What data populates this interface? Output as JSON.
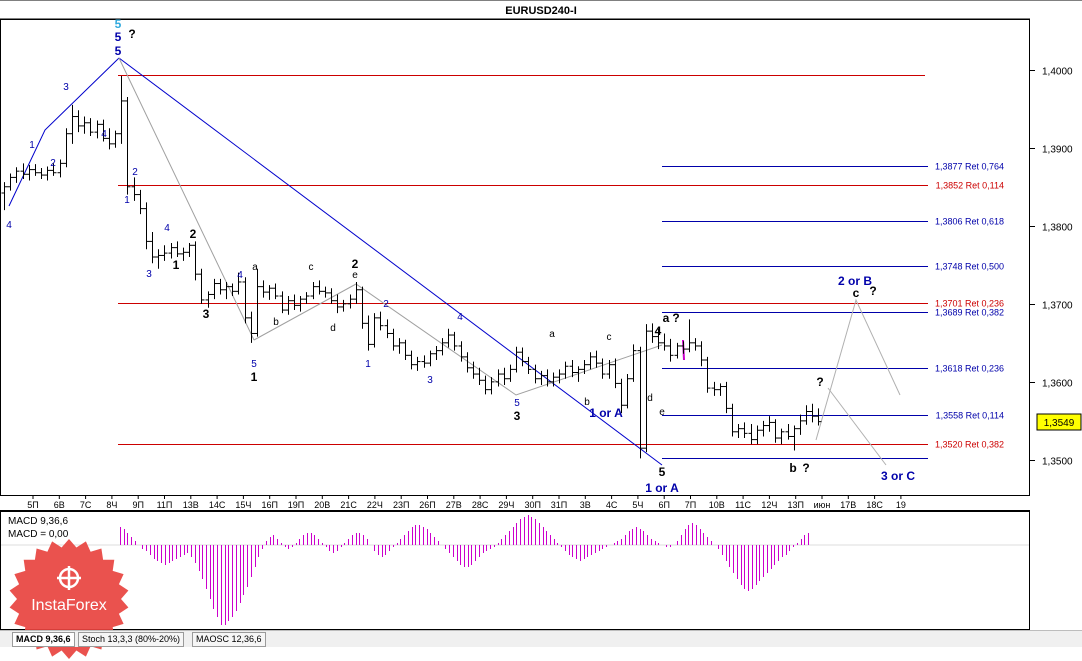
{
  "chart_data": {
    "type": "candlestick",
    "title": "EURUSD240-I",
    "last_price": "1,3549",
    "y_axis": {
      "range": [
        1.3455,
        1.4065
      ],
      "ticks": [
        "1,4000",
        "1,3900",
        "1,3800",
        "1,3700",
        "1,3600",
        "1,3500"
      ]
    },
    "x_ticks": [
      "5П",
      "6В",
      "7С",
      "8Ч",
      "9П",
      "11П",
      "13В",
      "14С",
      "15Ч",
      "16П",
      "19П",
      "20В",
      "21С",
      "22Ч",
      "23П",
      "26П",
      "27В",
      "28С",
      "29Ч",
      "30П",
      "31П",
      "3В",
      "4С",
      "5Ч",
      "6П",
      "7П",
      "10В",
      "11С",
      "12Ч",
      "13П",
      "июн",
      "17В",
      "18С",
      "19"
    ],
    "horizontal_levels": [
      {
        "label": "",
        "value": 1.3993,
        "color": "#cc0000"
      },
      {
        "label": "1,3877 Ret 0,764",
        "value": 1.3877,
        "color": "#0000aa"
      },
      {
        "label": "1,3852 Ret 0,114",
        "value": 1.3852,
        "color": "#cc0000"
      },
      {
        "label": "1,3806 Ret 0,618",
        "value": 1.3806,
        "color": "#0000aa"
      },
      {
        "label": "1,3748 Ret 0,500",
        "value": 1.3748,
        "color": "#0000aa"
      },
      {
        "label": "1,3701 Ret 0,236",
        "value": 1.3701,
        "color": "#cc0000"
      },
      {
        "label": "1,3689 Ret 0,382",
        "value": 1.3689,
        "color": "#0000aa"
      },
      {
        "label": "1,3618 Ret 0,236",
        "value": 1.3618,
        "color": "#0000aa"
      },
      {
        "label": "1,3558 Ret 0,114",
        "value": 1.3558,
        "color": "#0000aa"
      },
      {
        "label": "1,3520 Ret 0,382",
        "value": 1.352,
        "color": "#cc0000"
      },
      {
        "label": "",
        "value": 1.3502,
        "color": "#0000aa"
      }
    ],
    "wave_labels": [
      {
        "text": "5",
        "color": "#33aadd"
      },
      {
        "text": "5",
        "color": "#0000aa"
      },
      {
        "text": "5",
        "color": "#0000aa"
      },
      {
        "text": "?",
        "color": "#000000"
      },
      {
        "text": "3",
        "color": "#0000aa"
      },
      {
        "text": "1",
        "color": "#0000aa"
      },
      {
        "text": "2",
        "color": "#0000aa"
      },
      {
        "text": "4",
        "color": "#0000aa"
      },
      {
        "text": "4",
        "color": "#0000aa"
      },
      {
        "text": "2",
        "color": "#0000aa"
      },
      {
        "text": "1",
        "color": "#0000aa"
      },
      {
        "text": "3",
        "color": "#0000aa"
      },
      {
        "text": "4",
        "color": "#0000aa"
      },
      {
        "text": "1",
        "color": "#000000"
      },
      {
        "text": "2",
        "color": "#000000"
      },
      {
        "text": "3",
        "color": "#000000"
      },
      {
        "text": "4",
        "color": "#0000aa"
      },
      {
        "text": "a",
        "color": "#000000"
      },
      {
        "text": "b",
        "color": "#000000"
      },
      {
        "text": "5",
        "color": "#0000aa"
      },
      {
        "text": "1",
        "color": "#000000"
      },
      {
        "text": "c",
        "color": "#000000"
      },
      {
        "text": "d",
        "color": "#000000"
      },
      {
        "text": "2",
        "color": "#000000"
      },
      {
        "text": "e",
        "color": "#000000"
      },
      {
        "text": "2",
        "color": "#0000aa"
      },
      {
        "text": "1",
        "color": "#0000aa"
      },
      {
        "text": "3",
        "color": "#0000aa"
      },
      {
        "text": "4",
        "color": "#0000aa"
      },
      {
        "text": "5",
        "color": "#0000aa"
      },
      {
        "text": "3",
        "color": "#000000"
      },
      {
        "text": "a",
        "color": "#000000"
      },
      {
        "text": "b",
        "color": "#000000"
      },
      {
        "text": "c",
        "color": "#000000"
      },
      {
        "text": "d",
        "color": "#000000"
      },
      {
        "text": "e",
        "color": "#000000"
      },
      {
        "text": "4",
        "color": "#000000"
      },
      {
        "text": "1 or A",
        "color": "#0000aa"
      },
      {
        "text": "5",
        "color": "#000000"
      },
      {
        "text": "1 or A",
        "color": "#0000aa"
      },
      {
        "text": "a",
        "color": "#000000"
      },
      {
        "text": "?",
        "color": "#000000"
      },
      {
        "text": "2 or B",
        "color": "#0000aa"
      },
      {
        "text": "c",
        "color": "#000000"
      },
      {
        "text": "?",
        "color": "#000000"
      },
      {
        "text": "?",
        "color": "#000000"
      },
      {
        "text": "b",
        "color": "#000000"
      },
      {
        "text": "?",
        "color": "#000000"
      },
      {
        "text": "3 or C",
        "color": "#0000aa"
      }
    ],
    "macd": {
      "label": "MACD 9,36,6",
      "value_label": "MACD = 0,00",
      "color": "#cc00cc",
      "values": [
        9,
        8,
        6,
        4,
        2,
        0,
        -2,
        -3,
        -5,
        -7,
        -8,
        -9,
        -10,
        -9,
        -8,
        -7,
        -6,
        -5,
        -4,
        -6,
        -9,
        -13,
        -17,
        -22,
        -27,
        -32,
        -36,
        -40,
        -40,
        -38,
        -36,
        -33,
        -29,
        -25,
        -21,
        -16,
        -11,
        -6,
        -2,
        2,
        4,
        5,
        3,
        1,
        -1,
        -2,
        -1,
        1,
        3,
        5,
        6,
        6,
        5,
        3,
        1,
        -1,
        -3,
        -4,
        -3,
        -1,
        1,
        3,
        5,
        6,
        6,
        5,
        3,
        0,
        -3,
        -5,
        -6,
        -5,
        -3,
        -1,
        1,
        3,
        5,
        7,
        9,
        10,
        10,
        9,
        8,
        6,
        4,
        2,
        0,
        -2,
        -4,
        -6,
        -8,
        -10,
        -11,
        -11,
        -10,
        -8,
        -6,
        -4,
        -3,
        -2,
        -1,
        1,
        3,
        5,
        7,
        9,
        11,
        13,
        14,
        15,
        14,
        13,
        11,
        9,
        7,
        5,
        3,
        1,
        -1,
        -3,
        -5,
        -6,
        -7,
        -8,
        -7,
        -6,
        -5,
        -4,
        -3,
        -2,
        -1,
        0,
        1,
        2,
        3,
        5,
        7,
        8,
        9,
        8,
        7,
        5,
        3,
        2,
        1,
        0,
        -1,
        -1,
        0,
        2,
        5,
        8,
        10,
        11,
        10,
        8,
        6,
        4,
        2,
        0,
        -2,
        -5,
        -8,
        -11,
        -14,
        -17,
        -20,
        -22,
        -23,
        -22,
        -20,
        -18,
        -16,
        -14,
        -12,
        -10,
        -8,
        -6,
        -5,
        -3,
        -1,
        1,
        3,
        5,
        6
      ]
    },
    "candles": [
      [
        1.3842,
        1.3856,
        1.382,
        1.385
      ],
      [
        1.385,
        1.3867,
        1.3845,
        1.3862
      ],
      [
        1.3862,
        1.3875,
        1.3855,
        1.387
      ],
      [
        1.387,
        1.388,
        1.386,
        1.3866
      ],
      [
        1.3866,
        1.3878,
        1.3858,
        1.3872
      ],
      [
        1.3872,
        1.3879,
        1.3864,
        1.3868
      ],
      [
        1.3868,
        1.3874,
        1.386,
        1.3865
      ],
      [
        1.3865,
        1.3876,
        1.3858,
        1.3871
      ],
      [
        1.3871,
        1.388,
        1.3864,
        1.3868
      ],
      [
        1.3868,
        1.3885,
        1.3862,
        1.388
      ],
      [
        1.388,
        1.3925,
        1.3875,
        1.3918
      ],
      [
        1.3918,
        1.3955,
        1.3905,
        1.394
      ],
      [
        1.394,
        1.3948,
        1.392,
        1.3928
      ],
      [
        1.3928,
        1.394,
        1.3918,
        1.3932
      ],
      [
        1.3932,
        1.3938,
        1.3915,
        1.392
      ],
      [
        1.392,
        1.3935,
        1.3912,
        1.393
      ],
      [
        1.393,
        1.3936,
        1.3908,
        1.3912
      ],
      [
        1.3912,
        1.3925,
        1.3898,
        1.3905
      ],
      [
        1.3905,
        1.3922,
        1.39,
        1.3918
      ],
      [
        1.3918,
        1.3992,
        1.3905,
        1.396
      ],
      [
        1.396,
        1.3965,
        1.384,
        1.385
      ],
      [
        1.385,
        1.3862,
        1.3832,
        1.384
      ],
      [
        1.384,
        1.3846,
        1.3815,
        1.3822
      ],
      [
        1.3822,
        1.383,
        1.377,
        1.378
      ],
      [
        1.378,
        1.3792,
        1.3752,
        1.376
      ],
      [
        1.376,
        1.377,
        1.3745,
        1.3762
      ],
      [
        1.3762,
        1.3775,
        1.3755,
        1.3765
      ],
      [
        1.3765,
        1.3778,
        1.3758,
        1.3772
      ],
      [
        1.3772,
        1.378,
        1.376,
        1.3764
      ],
      [
        1.3764,
        1.3772,
        1.3755,
        1.3766
      ],
      [
        1.3766,
        1.3778,
        1.376,
        1.3775
      ],
      [
        1.3775,
        1.378,
        1.373,
        1.3738
      ],
      [
        1.3738,
        1.3745,
        1.37,
        1.3705
      ],
      [
        1.3705,
        1.3716,
        1.3695,
        1.3712
      ],
      [
        1.3712,
        1.3732,
        1.3706,
        1.3726
      ],
      [
        1.3726,
        1.3732,
        1.3712,
        1.3718
      ],
      [
        1.3718,
        1.3728,
        1.3706,
        1.3722
      ],
      [
        1.3722,
        1.3726,
        1.371,
        1.3716
      ],
      [
        1.3716,
        1.374,
        1.3712,
        1.3728
      ],
      [
        1.3728,
        1.3734,
        1.3675,
        1.3682
      ],
      [
        1.3682,
        1.369,
        1.365,
        1.3662
      ],
      [
        1.3662,
        1.3745,
        1.3658,
        1.3722
      ],
      [
        1.3722,
        1.373,
        1.3708,
        1.3715
      ],
      [
        1.3715,
        1.3724,
        1.3705,
        1.372
      ],
      [
        1.372,
        1.3726,
        1.3706,
        1.371
      ],
      [
        1.371,
        1.3716,
        1.3688,
        1.3692
      ],
      [
        1.3692,
        1.371,
        1.3686,
        1.3704
      ],
      [
        1.3704,
        1.3712,
        1.3692,
        1.3698
      ],
      [
        1.3698,
        1.371,
        1.369,
        1.3706
      ],
      [
        1.3706,
        1.3715,
        1.37,
        1.371
      ],
      [
        1.371,
        1.3728,
        1.3706,
        1.3722
      ],
      [
        1.3722,
        1.373,
        1.3712,
        1.3716
      ],
      [
        1.3716,
        1.3722,
        1.3708,
        1.3714
      ],
      [
        1.3714,
        1.372,
        1.37,
        1.3704
      ],
      [
        1.3704,
        1.3712,
        1.3688,
        1.3696
      ],
      [
        1.3696,
        1.3705,
        1.369,
        1.37
      ],
      [
        1.37,
        1.3712,
        1.3694,
        1.3706
      ],
      [
        1.3706,
        1.3728,
        1.37,
        1.3718
      ],
      [
        1.3718,
        1.3722,
        1.3668,
        1.3675
      ],
      [
        1.3675,
        1.3685,
        1.364,
        1.3648
      ],
      [
        1.3648,
        1.3688,
        1.3644,
        1.3682
      ],
      [
        1.3682,
        1.369,
        1.3666,
        1.3672
      ],
      [
        1.3672,
        1.368,
        1.3656,
        1.3662
      ],
      [
        1.3662,
        1.3668,
        1.364,
        1.3646
      ],
      [
        1.3646,
        1.3656,
        1.3636,
        1.365
      ],
      [
        1.365,
        1.3654,
        1.3628,
        1.3634
      ],
      [
        1.3634,
        1.364,
        1.3616,
        1.3622
      ],
      [
        1.3622,
        1.3632,
        1.3614,
        1.3626
      ],
      [
        1.3626,
        1.3634,
        1.3618,
        1.3624
      ],
      [
        1.3624,
        1.364,
        1.362,
        1.3636
      ],
      [
        1.3636,
        1.3646,
        1.3628,
        1.364
      ],
      [
        1.364,
        1.3656,
        1.3634,
        1.365
      ],
      [
        1.365,
        1.3668,
        1.3644,
        1.366
      ],
      [
        1.366,
        1.3664,
        1.364,
        1.3646
      ],
      [
        1.3646,
        1.3652,
        1.3626,
        1.3632
      ],
      [
        1.3632,
        1.3638,
        1.3612,
        1.3618
      ],
      [
        1.3618,
        1.3626,
        1.3604,
        1.361
      ],
      [
        1.361,
        1.3618,
        1.3596,
        1.3602
      ],
      [
        1.3602,
        1.3608,
        1.3584,
        1.359
      ],
      [
        1.359,
        1.3606,
        1.3584,
        1.36
      ],
      [
        1.36,
        1.3616,
        1.3594,
        1.361
      ],
      [
        1.361,
        1.3618,
        1.3596,
        1.3604
      ],
      [
        1.3604,
        1.3622,
        1.36,
        1.3616
      ],
      [
        1.3616,
        1.3645,
        1.3612,
        1.3638
      ],
      [
        1.3638,
        1.3644,
        1.362,
        1.3626
      ],
      [
        1.3626,
        1.3632,
        1.361,
        1.3616
      ],
      [
        1.3616,
        1.3622,
        1.3598,
        1.3604
      ],
      [
        1.3604,
        1.3614,
        1.3596,
        1.3608
      ],
      [
        1.3608,
        1.3616,
        1.3594,
        1.36
      ],
      [
        1.36,
        1.3612,
        1.3594,
        1.3606
      ],
      [
        1.3606,
        1.3616,
        1.3598,
        1.361
      ],
      [
        1.361,
        1.3626,
        1.3604,
        1.362
      ],
      [
        1.362,
        1.3628,
        1.3606,
        1.3612
      ],
      [
        1.3612,
        1.362,
        1.36,
        1.3616
      ],
      [
        1.3616,
        1.3628,
        1.361,
        1.3622
      ],
      [
        1.3622,
        1.3638,
        1.3616,
        1.3632
      ],
      [
        1.3632,
        1.364,
        1.3618,
        1.3624
      ],
      [
        1.3624,
        1.363,
        1.3604,
        1.361
      ],
      [
        1.361,
        1.3628,
        1.3604,
        1.3622
      ],
      [
        1.3622,
        1.363,
        1.3592,
        1.3598
      ],
      [
        1.3598,
        1.3604,
        1.356,
        1.357
      ],
      [
        1.357,
        1.361,
        1.3566,
        1.3604
      ],
      [
        1.3604,
        1.3648,
        1.36,
        1.364
      ],
      [
        1.364,
        1.3645,
        1.3502,
        1.3515
      ],
      [
        1.3515,
        1.3674,
        1.351,
        1.3665
      ],
      [
        1.3665,
        1.3675,
        1.365,
        1.3658
      ],
      [
        1.3658,
        1.3668,
        1.3642,
        1.365
      ],
      [
        1.365,
        1.3662,
        1.364,
        1.3646
      ],
      [
        1.3646,
        1.3655,
        1.3626,
        1.3634
      ],
      [
        1.3634,
        1.365,
        1.363,
        1.3646
      ],
      [
        1.3646,
        1.3652,
        1.3636,
        1.3642
      ],
      [
        1.3642,
        1.368,
        1.3638,
        1.365
      ],
      [
        1.365,
        1.3656,
        1.364,
        1.3646
      ],
      [
        1.3646,
        1.3652,
        1.362,
        1.3628
      ],
      [
        1.3628,
        1.3632,
        1.3586,
        1.3592
      ],
      [
        1.3592,
        1.36,
        1.3582,
        1.359
      ],
      [
        1.359,
        1.3598,
        1.3582,
        1.3594
      ],
      [
        1.3594,
        1.36,
        1.356,
        1.3566
      ],
      [
        1.3566,
        1.3572,
        1.353,
        1.3536
      ],
      [
        1.3536,
        1.3546,
        1.3528,
        1.354
      ],
      [
        1.354,
        1.3548,
        1.3528,
        1.3534
      ],
      [
        1.3534,
        1.3546,
        1.352,
        1.3526
      ],
      [
        1.3526,
        1.3544,
        1.352,
        1.3538
      ],
      [
        1.3538,
        1.355,
        1.353,
        1.3544
      ],
      [
        1.3544,
        1.3556,
        1.3536,
        1.3548
      ],
      [
        1.3548,
        1.3552,
        1.3522,
        1.3528
      ],
      [
        1.3528,
        1.354,
        1.352,
        1.3536
      ],
      [
        1.3536,
        1.3546,
        1.3526,
        1.353
      ],
      [
        1.353,
        1.3544,
        1.3512,
        1.354
      ],
      [
        1.354,
        1.3558,
        1.3532,
        1.355
      ],
      [
        1.355,
        1.357,
        1.3545,
        1.3562
      ],
      [
        1.3562,
        1.3572,
        1.3548,
        1.3556
      ],
      [
        1.3556,
        1.3566,
        1.3544,
        1.3549
      ]
    ]
  },
  "tabs": [
    "MACD 9,36,6",
    "Stoch 13,3,3 (80%-20%)",
    "MAOSC 12,36,6"
  ],
  "logo": {
    "text": "InstaForex",
    "color": "#e8433f"
  }
}
